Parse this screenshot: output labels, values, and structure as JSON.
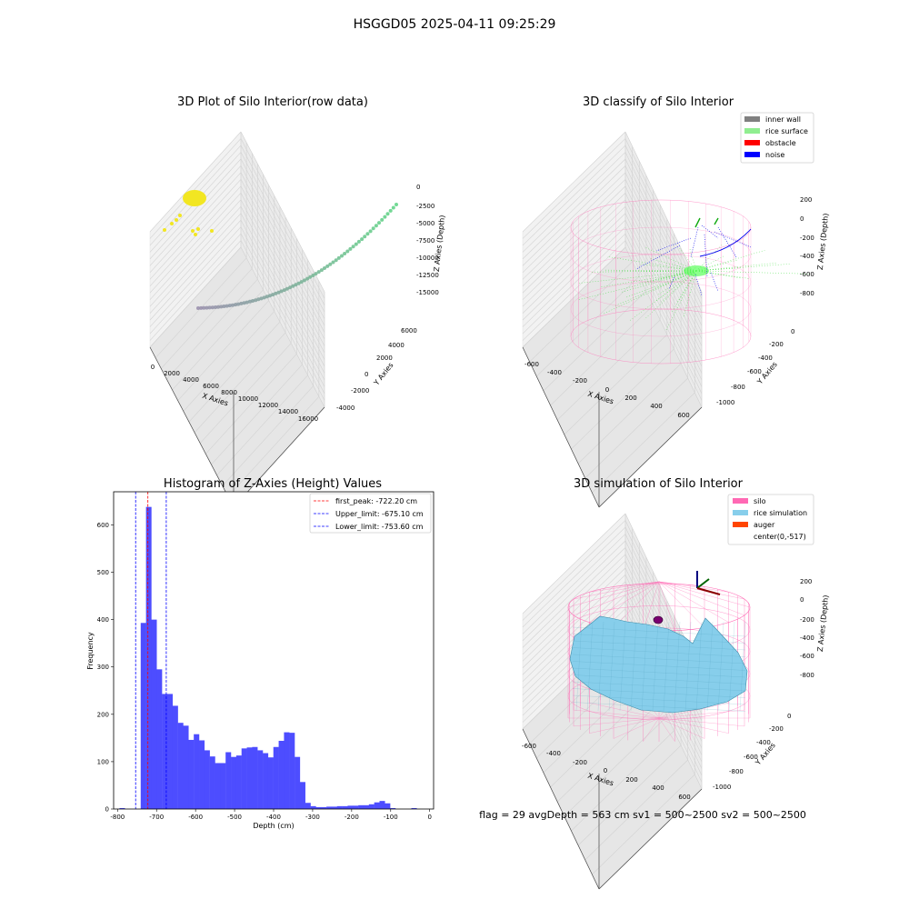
{
  "figure": {
    "title": "HSGGD05 2025-04-11 09:25:29",
    "footer": "flag = 29  avgDepth = 563 cm  sv1 = 500~2500  sv2 = 500~2500"
  },
  "colors": {
    "inner_wall": "#808080",
    "rice_surface": "#90ee90",
    "obstacle": "#ff0000",
    "noise": "#0000ff",
    "silo": "#ff69b4",
    "rice_simulation": "#87ceeb",
    "auger": "#ff4500",
    "hist_bar": "#4d4dff",
    "scatter_yellow": "#f2e622",
    "first_peak_line": "#ff0000",
    "limit_line": "#0000ff"
  },
  "chart_data": [
    {
      "type": "scatter",
      "title": "3D Plot of Silo Interior(row data)",
      "xlabel": "X Axies",
      "ylabel": "Y Axies",
      "zlabel": "Z Axies (Depth)",
      "x_ticks": [
        "0",
        "2000",
        "4000",
        "6000",
        "8000",
        "10000",
        "12000",
        "14000",
        "16000"
      ],
      "y_ticks": [
        "-4000",
        "-2000",
        "0",
        "2000",
        "4000",
        "6000"
      ],
      "z_ticks": [
        "0",
        "-2500",
        "-5000",
        "-7500",
        "-10000",
        "-12500",
        "-15000"
      ]
    },
    {
      "type": "scatter",
      "title": "3D classify of Silo Interior",
      "xlabel": "X Axies",
      "ylabel": "Y Axies",
      "zlabel": "Z Axies (Depth)",
      "x_ticks": [
        "-600",
        "-400",
        "-200",
        "0",
        "200",
        "400",
        "600"
      ],
      "y_ticks": [
        "0",
        "-200",
        "-400",
        "-600",
        "-800",
        "-1000"
      ],
      "z_ticks": [
        "200",
        "0",
        "-200",
        "-400",
        "-600",
        "-800"
      ],
      "legend": [
        "inner wall",
        "rice surface",
        "obstacle",
        "noise"
      ]
    },
    {
      "type": "bar",
      "title": "Histogram of Z-Axies (Height) Values",
      "xlabel": "Depth (cm)",
      "ylabel": "Frequency",
      "xlim": [
        -810,
        10
      ],
      "ylim": [
        0,
        670
      ],
      "x_ticks": [
        -800,
        -700,
        -600,
        -500,
        -400,
        -300,
        -200,
        -100,
        0
      ],
      "y_ticks": [
        0,
        100,
        200,
        300,
        400,
        500,
        600
      ],
      "bin_width": 13.6,
      "bins_start": [
        -795,
        -781.4,
        -767.8,
        -754.2,
        -740.6,
        -727,
        -713.4,
        -699.8,
        -686.2,
        -672.6,
        -659,
        -645.4,
        -631.8,
        -618.2,
        -604.6,
        -591,
        -577.4,
        -563.8,
        -550.2,
        -536.6,
        -523,
        -509.4,
        -495.8,
        -482.2,
        -468.6,
        -455,
        -441.4,
        -427.8,
        -414.2,
        -400.6,
        -387,
        -373.4,
        -359.8,
        -346.2,
        -332.6,
        -319,
        -305.4,
        -291.8,
        -278.2,
        -264.6,
        -251,
        -237.4,
        -223.8,
        -210.2,
        -196.6,
        -183,
        -169.4,
        -155.8,
        -142.2,
        -128.6,
        -115,
        -101.4,
        -87.8,
        -74.2,
        -60.6,
        -47,
        -33.4,
        -19.8,
        -6.2
      ],
      "values": [
        2,
        0,
        0,
        0,
        393,
        638,
        400,
        295,
        243,
        243,
        218,
        182,
        176,
        146,
        158,
        145,
        124,
        111,
        97,
        97,
        120,
        110,
        113,
        128,
        130,
        131,
        124,
        118,
        109,
        131,
        144,
        162,
        161,
        110,
        57,
        13,
        6,
        4,
        4,
        5,
        5,
        6,
        6,
        7,
        7,
        8,
        8,
        10,
        14,
        17,
        12,
        2,
        0,
        0,
        0,
        2,
        0,
        0,
        0
      ],
      "vlines": [
        {
          "label": "first_peak: -722.20 cm",
          "x": -722.2,
          "color": "#ff0000"
        },
        {
          "label": "Upper_limit: -675.10 cm",
          "x": -675.1,
          "color": "#0000ff"
        },
        {
          "label": "Lower_limit: -753.60 cm",
          "x": -753.6,
          "color": "#0000ff"
        }
      ],
      "legend_position": "top-right"
    },
    {
      "type": "surface",
      "title": "3D simulation of Silo Interior",
      "xlabel": "X Axies",
      "ylabel": "Y Axies",
      "zlabel": "Z Axies (Depth)",
      "x_ticks": [
        "-600",
        "-400",
        "-200",
        "0",
        "200",
        "400",
        "600"
      ],
      "y_ticks": [
        "0",
        "-200",
        "-400",
        "-600",
        "-800",
        "-1000"
      ],
      "z_ticks": [
        "200",
        "0",
        "-200",
        "-400",
        "-600",
        "-800"
      ],
      "legend": [
        "silo",
        "rice simulation",
        "auger",
        "center(0,-517)"
      ]
    }
  ]
}
